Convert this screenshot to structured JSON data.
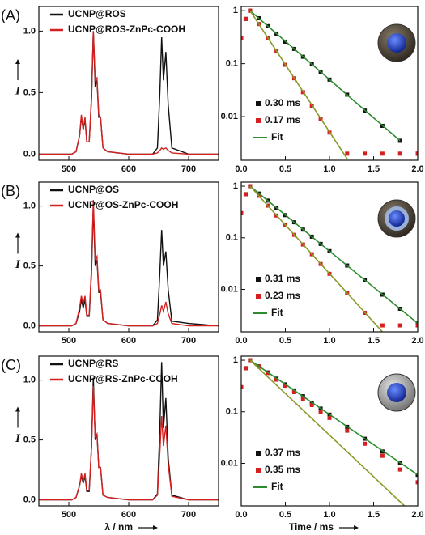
{
  "chart_data": [
    {
      "type": "line",
      "panel_label": "(A)",
      "ylabel": "I",
      "x": [
        450,
        505,
        512,
        518,
        521,
        524,
        527,
        530,
        534,
        538,
        541,
        544,
        547,
        550,
        553,
        557,
        565,
        600,
        640,
        648,
        652,
        655,
        658,
        662,
        666,
        672,
        700,
        750
      ],
      "series": [
        {
          "name": "UCNP@ROS",
          "color": "#111111",
          "values": [
            0,
            0,
            0.02,
            0.15,
            0.3,
            0.2,
            0.28,
            0.1,
            0.1,
            0.45,
            1.0,
            0.55,
            0.6,
            0.3,
            0.3,
            0.05,
            0.02,
            0,
            0,
            0.05,
            0.5,
            0.95,
            0.6,
            0.83,
            0.4,
            0.05,
            0,
            0
          ]
        },
        {
          "name": "UCNP@ROS-ZnPc-COOH",
          "color": "#d42020",
          "values": [
            0,
            0,
            0.02,
            0.15,
            0.32,
            0.2,
            0.3,
            0.1,
            0.1,
            0.48,
            1.0,
            0.6,
            0.62,
            0.32,
            0.3,
            0.05,
            0.02,
            0,
            0,
            0.01,
            0.03,
            0.05,
            0.04,
            0.05,
            0.03,
            0.01,
            0,
            0
          ]
        }
      ],
      "xlim": [
        450,
        750
      ],
      "xticks": [
        500,
        600,
        700
      ],
      "ylim": [
        -0.05,
        1.2
      ],
      "yticks": [
        {
          "value": 0,
          "label": "0.0"
        },
        0.5,
        {
          "value": 1,
          "label": "1.0"
        }
      ]
    },
    {
      "type": "scatter",
      "log_y": true,
      "x": [
        0,
        0.05,
        0.1,
        0.2,
        0.3,
        0.4,
        0.5,
        0.6,
        0.7,
        0.8,
        0.9,
        1.0,
        1.2,
        1.4,
        1.6,
        1.8,
        2.0
      ],
      "series": [
        {
          "name": "0.30 ms",
          "color": "#111111",
          "style": "markers",
          "values": [
            0.3,
            0.7,
            1,
            0.72,
            0.51,
            0.37,
            0.26,
            0.19,
            0.135,
            0.097,
            0.069,
            0.05,
            0.026,
            0.013,
            0.0067,
            0.0035,
            0.002
          ]
        },
        {
          "name": "0.17 ms",
          "color": "#d42020",
          "style": "markers",
          "values": [
            0.3,
            0.7,
            1,
            0.56,
            0.31,
            0.17,
            0.095,
            0.053,
            0.029,
            0.016,
            0.009,
            0.005,
            0.002,
            0.002,
            0.002,
            0.002,
            0.002
          ]
        },
        {
          "name": "Fit",
          "color": "#2e8b2e",
          "style": "line",
          "x": [
            0.1,
            1.8
          ],
          "values": [
            1,
            0.0035
          ]
        },
        {
          "color": "#8a9a2a",
          "style": "line",
          "x": [
            0.1,
            1.2
          ],
          "values": [
            1,
            0.0016
          ]
        }
      ],
      "xlim": [
        0,
        2
      ],
      "xticks": [
        {
          "value": 0,
          "label": "0.0"
        },
        0.5,
        {
          "value": 1,
          "label": "1.0"
        },
        1.5,
        {
          "value": 2,
          "label": "2.0"
        }
      ],
      "ylim": [
        0.0015,
        1.2
      ],
      "yticks": [
        0.01,
        0.1,
        1
      ]
    },
    {
      "type": "line",
      "panel_label": "(B)",
      "ylabel": "I",
      "x": [
        450,
        505,
        512,
        518,
        521,
        524,
        527,
        530,
        534,
        538,
        541,
        544,
        547,
        550,
        553,
        557,
        565,
        600,
        640,
        648,
        652,
        655,
        658,
        662,
        666,
        672,
        700,
        750
      ],
      "series": [
        {
          "name": "UCNP@OS",
          "color": "#111111",
          "values": [
            0,
            0,
            0.02,
            0.12,
            0.22,
            0.15,
            0.22,
            0.08,
            0.08,
            0.45,
            1.0,
            0.5,
            0.55,
            0.28,
            0.28,
            0.05,
            0.02,
            0,
            0,
            0.05,
            0.45,
            0.8,
            0.5,
            0.62,
            0.3,
            0.04,
            0.02,
            0
          ]
        },
        {
          "name": "UCNP@OS-ZnPc-COOH",
          "color": "#d42020",
          "values": [
            0,
            0,
            0.02,
            0.15,
            0.25,
            0.18,
            0.25,
            0.09,
            0.09,
            0.5,
            1.05,
            0.55,
            0.58,
            0.3,
            0.3,
            0.05,
            0.02,
            0,
            0,
            0.02,
            0.1,
            0.17,
            0.12,
            0.2,
            0.1,
            0.02,
            0,
            0
          ]
        }
      ],
      "xlim": [
        450,
        750
      ],
      "xticks": [
        500,
        600,
        700
      ],
      "ylim": [
        -0.05,
        1.2
      ],
      "yticks": [
        {
          "value": 0,
          "label": "0.0"
        },
        0.5,
        {
          "value": 1,
          "label": "1.0"
        }
      ]
    },
    {
      "type": "scatter",
      "log_y": true,
      "x": [
        0,
        0.05,
        0.1,
        0.2,
        0.3,
        0.4,
        0.5,
        0.6,
        0.7,
        0.8,
        0.9,
        1.0,
        1.2,
        1.4,
        1.6,
        1.8,
        2.0
      ],
      "series": [
        {
          "name": "0.31 ms",
          "color": "#111111",
          "style": "markers",
          "values": [
            0.3,
            0.7,
            1,
            0.72,
            0.525,
            0.38,
            0.275,
            0.2,
            0.144,
            0.105,
            0.076,
            0.055,
            0.029,
            0.015,
            0.0079,
            0.0042,
            0.0022
          ]
        },
        {
          "name": "0.23 ms",
          "color": "#d42020",
          "style": "markers",
          "values": [
            0.3,
            0.7,
            1,
            0.65,
            0.42,
            0.27,
            0.176,
            0.114,
            0.074,
            0.048,
            0.031,
            0.02,
            0.0084,
            0.0035,
            0.002,
            0.002,
            0.002
          ]
        },
        {
          "name": "Fit",
          "color": "#2e8b2e",
          "style": "line",
          "x": [
            0.1,
            2.0
          ],
          "values": [
            1,
            0.0022
          ]
        },
        {
          "color": "#8a9a2a",
          "style": "line",
          "x": [
            0.1,
            1.6
          ],
          "values": [
            1,
            0.0015
          ]
        }
      ],
      "xlim": [
        0,
        2
      ],
      "xticks": [
        {
          "value": 0,
          "label": "0.0"
        },
        0.5,
        {
          "value": 1,
          "label": "1.0"
        },
        1.5,
        {
          "value": 2,
          "label": "2.0"
        }
      ],
      "ylim": [
        0.0015,
        1.2
      ],
      "yticks": [
        0.01,
        0.1,
        1
      ]
    },
    {
      "type": "line",
      "panel_label": "(C)",
      "ylabel": "I",
      "xlabel": "λ / nm",
      "x": [
        450,
        505,
        512,
        518,
        521,
        524,
        527,
        530,
        534,
        538,
        541,
        544,
        547,
        550,
        553,
        557,
        565,
        600,
        640,
        648,
        652,
        655,
        658,
        662,
        666,
        672,
        700,
        750
      ],
      "series": [
        {
          "name": "UCNP@RS",
          "color": "#111111",
          "values": [
            0,
            0,
            0.02,
            0.12,
            0.2,
            0.14,
            0.2,
            0.07,
            0.07,
            0.45,
            1.02,
            0.5,
            0.55,
            0.27,
            0.27,
            0.04,
            0.02,
            0,
            0,
            0.05,
            0.6,
            1.15,
            0.6,
            0.85,
            0.35,
            0.04,
            0,
            0
          ]
        },
        {
          "name": "UCNP@RS-ZnPc-COOH",
          "color": "#d42020",
          "values": [
            0,
            0,
            0.02,
            0.12,
            0.22,
            0.15,
            0.22,
            0.08,
            0.08,
            0.45,
            0.95,
            0.52,
            0.55,
            0.27,
            0.27,
            0.04,
            0.02,
            0,
            0,
            0.04,
            0.4,
            0.7,
            0.45,
            0.62,
            0.3,
            0.03,
            0,
            0
          ]
        }
      ],
      "xlim": [
        450,
        750
      ],
      "xticks": [
        500,
        600,
        700
      ],
      "ylim": [
        -0.05,
        1.2
      ],
      "yticks": [
        {
          "value": 0,
          "label": "0.0"
        },
        0.5,
        {
          "value": 1,
          "label": "1.0"
        }
      ]
    },
    {
      "type": "scatter",
      "log_y": true,
      "xlabel": "Time / ms",
      "x": [
        0,
        0.05,
        0.1,
        0.2,
        0.3,
        0.4,
        0.5,
        0.6,
        0.7,
        0.8,
        0.9,
        1.0,
        1.2,
        1.4,
        1.6,
        1.8,
        2.0
      ],
      "series": [
        {
          "name": "0.37 ms",
          "color": "#111111",
          "style": "markers",
          "values": [
            0.3,
            0.7,
            1,
            0.76,
            0.58,
            0.44,
            0.34,
            0.26,
            0.2,
            0.15,
            0.115,
            0.088,
            0.051,
            0.03,
            0.017,
            0.01,
            0.006
          ]
        },
        {
          "name": "0.35 ms",
          "color": "#d42020",
          "style": "markers",
          "values": [
            0.3,
            0.7,
            1,
            0.75,
            0.565,
            0.42,
            0.32,
            0.24,
            0.18,
            0.135,
            0.1,
            0.076,
            0.043,
            0.024,
            0.014,
            0.0076,
            0.0043
          ]
        },
        {
          "name": "Fit",
          "color": "#2e8b2e",
          "style": "line",
          "x": [
            0.1,
            2.0
          ],
          "values": [
            1,
            0.006
          ]
        },
        {
          "color": "#8a9a2a",
          "style": "line",
          "x": [
            0.1,
            1.85
          ],
          "values": [
            1,
            0.0015
          ]
        }
      ],
      "xlim": [
        0,
        2
      ],
      "xticks": [
        {
          "value": 0,
          "label": "0.0"
        },
        0.5,
        {
          "value": 1,
          "label": "1.0"
        },
        1.5,
        {
          "value": 2,
          "label": "2.0"
        }
      ],
      "ylim": [
        0.0015,
        1.2
      ],
      "yticks": [
        0.01,
        0.1,
        1
      ]
    }
  ]
}
